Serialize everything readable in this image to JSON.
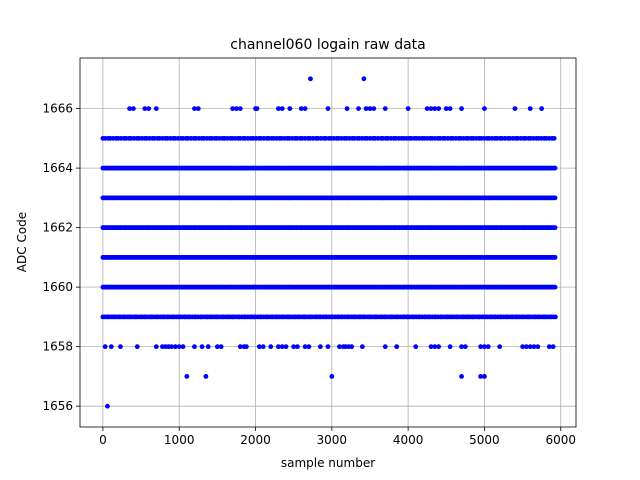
{
  "chart_data": {
    "type": "scatter",
    "title": "channel060 logain raw data",
    "xlabel": "sample number",
    "ylabel": "ADC Code",
    "xlim": [
      -300,
      6200
    ],
    "ylim": [
      1655.3,
      1667.7
    ],
    "xticks": [
      0,
      1000,
      2000,
      3000,
      4000,
      5000,
      6000
    ],
    "yticks": [
      1656,
      1658,
      1660,
      1662,
      1664,
      1666
    ],
    "grid": true,
    "marker_color": "#0000ff",
    "series": [
      {
        "dense_levels": [
          1659,
          1660,
          1661,
          1662,
          1663,
          1664,
          1665
        ],
        "dense_x_range": [
          0,
          5930
        ],
        "points": [
          [
            60,
            1656
          ],
          [
            1100,
            1657
          ],
          [
            1350,
            1657
          ],
          [
            3000,
            1657
          ],
          [
            4700,
            1657
          ],
          [
            4950,
            1657
          ],
          [
            5000,
            1657
          ],
          [
            30,
            1658
          ],
          [
            110,
            1658
          ],
          [
            230,
            1658
          ],
          [
            450,
            1658
          ],
          [
            700,
            1658
          ],
          [
            780,
            1658
          ],
          [
            820,
            1658
          ],
          [
            860,
            1658
          ],
          [
            900,
            1658
          ],
          [
            950,
            1658
          ],
          [
            1000,
            1658
          ],
          [
            1050,
            1658
          ],
          [
            1200,
            1658
          ],
          [
            1300,
            1658
          ],
          [
            1380,
            1658
          ],
          [
            1500,
            1658
          ],
          [
            1550,
            1658
          ],
          [
            1800,
            1658
          ],
          [
            1850,
            1658
          ],
          [
            1880,
            1658
          ],
          [
            2050,
            1658
          ],
          [
            2100,
            1658
          ],
          [
            2200,
            1658
          ],
          [
            2300,
            1658
          ],
          [
            2350,
            1658
          ],
          [
            2400,
            1658
          ],
          [
            2500,
            1658
          ],
          [
            2550,
            1658
          ],
          [
            2650,
            1658
          ],
          [
            2700,
            1658
          ],
          [
            2850,
            1658
          ],
          [
            2950,
            1658
          ],
          [
            3100,
            1658
          ],
          [
            3150,
            1658
          ],
          [
            3180,
            1658
          ],
          [
            3220,
            1658
          ],
          [
            3260,
            1658
          ],
          [
            3400,
            1658
          ],
          [
            3700,
            1658
          ],
          [
            3850,
            1658
          ],
          [
            4100,
            1658
          ],
          [
            4300,
            1658
          ],
          [
            4350,
            1658
          ],
          [
            4400,
            1658
          ],
          [
            4550,
            1658
          ],
          [
            4700,
            1658
          ],
          [
            4750,
            1658
          ],
          [
            4950,
            1658
          ],
          [
            5000,
            1658
          ],
          [
            5050,
            1658
          ],
          [
            5200,
            1658
          ],
          [
            5500,
            1658
          ],
          [
            5550,
            1658
          ],
          [
            5600,
            1658
          ],
          [
            5650,
            1658
          ],
          [
            5700,
            1658
          ],
          [
            5850,
            1658
          ],
          [
            5900,
            1658
          ],
          [
            350,
            1666
          ],
          [
            400,
            1666
          ],
          [
            550,
            1666
          ],
          [
            600,
            1666
          ],
          [
            700,
            1666
          ],
          [
            1200,
            1666
          ],
          [
            1250,
            1666
          ],
          [
            1700,
            1666
          ],
          [
            1750,
            1666
          ],
          [
            1800,
            1666
          ],
          [
            2000,
            1666
          ],
          [
            2020,
            1666
          ],
          [
            2300,
            1666
          ],
          [
            2350,
            1666
          ],
          [
            2450,
            1666
          ],
          [
            2600,
            1666
          ],
          [
            2650,
            1666
          ],
          [
            2950,
            1666
          ],
          [
            3200,
            1666
          ],
          [
            3350,
            1666
          ],
          [
            3450,
            1666
          ],
          [
            3500,
            1666
          ],
          [
            3550,
            1666
          ],
          [
            3700,
            1666
          ],
          [
            4000,
            1666
          ],
          [
            4250,
            1666
          ],
          [
            4300,
            1666
          ],
          [
            4350,
            1666
          ],
          [
            4400,
            1666
          ],
          [
            4500,
            1666
          ],
          [
            4550,
            1666
          ],
          [
            4700,
            1666
          ],
          [
            5000,
            1666
          ],
          [
            5400,
            1666
          ],
          [
            5600,
            1666
          ],
          [
            5750,
            1666
          ],
          [
            2720,
            1667
          ],
          [
            3420,
            1667
          ]
        ]
      }
    ]
  }
}
